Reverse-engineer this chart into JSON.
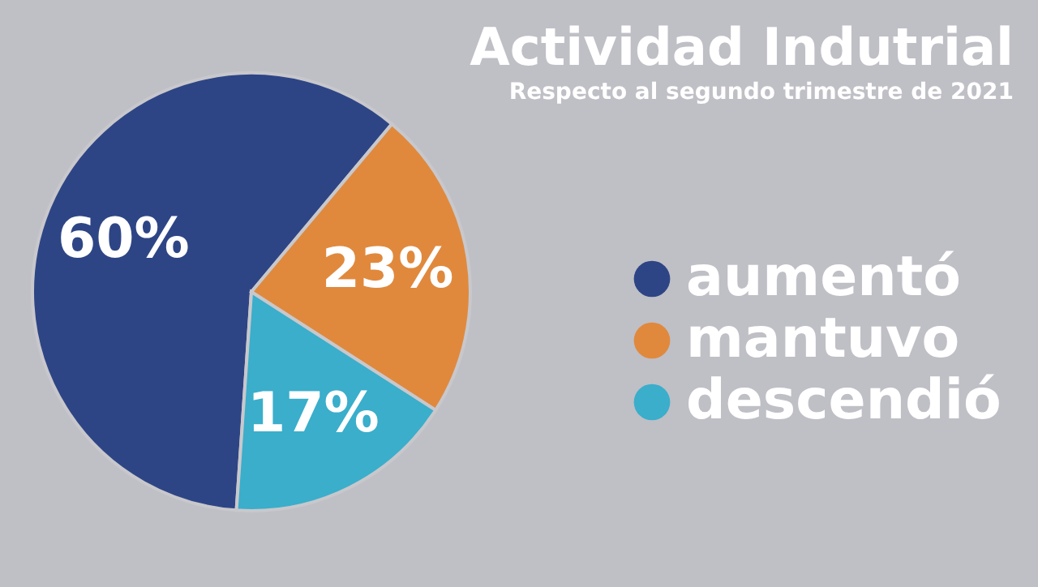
{
  "chart_data": {
    "type": "pie",
    "title": "Actividad Indutrial",
    "subtitle": "Respecto al segundo trimestre de 2021",
    "categories": [
      "aumentó",
      "mantuvo",
      "descendió"
    ],
    "values": [
      60,
      23,
      17
    ],
    "colors": [
      "#2e4585",
      "#e0893d",
      "#3aaecb"
    ],
    "value_labels": [
      "60%",
      "23%",
      "17%"
    ],
    "legend": "right"
  }
}
